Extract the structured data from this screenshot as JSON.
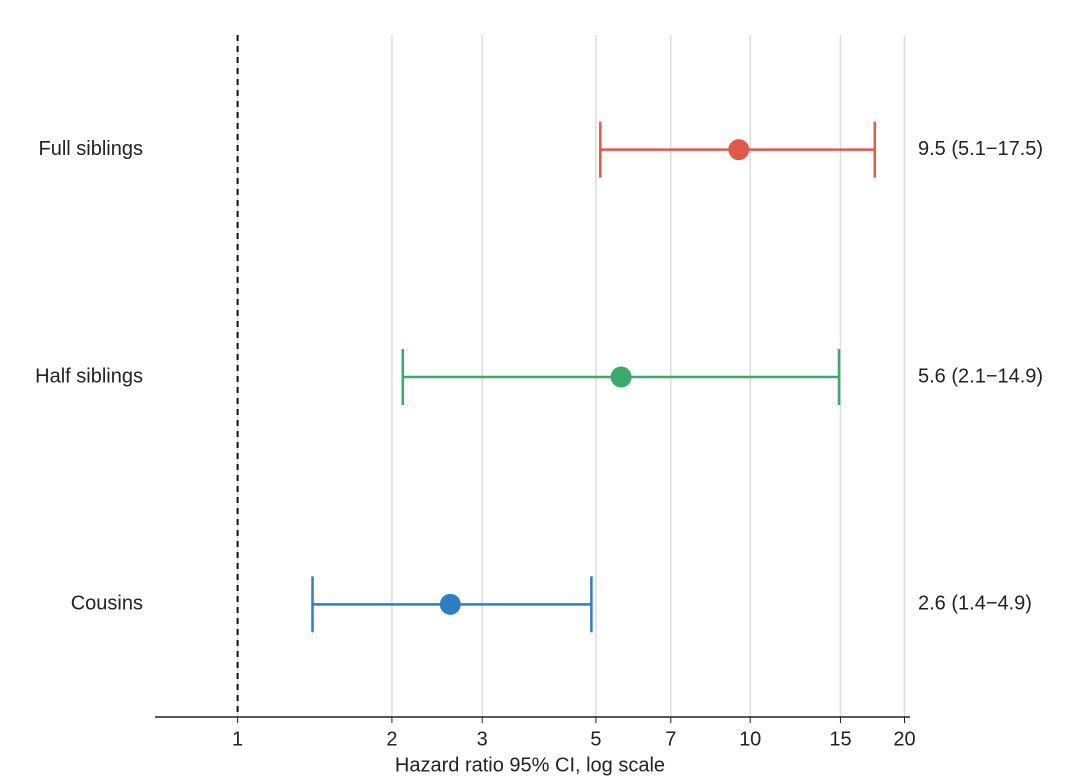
{
  "chart_data": {
    "type": "forest",
    "x_label": "Hazard ratio 95% CI, log scale",
    "categories": [
      "Full siblings",
      "Half siblings",
      "Cousins"
    ],
    "values": [
      9.5,
      5.6,
      2.6
    ],
    "lower": [
      5.1,
      2.1,
      1.4
    ],
    "upper": [
      17.5,
      14.9,
      4.9
    ],
    "value_labels": [
      "9.5 (5.1−17.5)",
      "5.6 (2.1−14.9)",
      "2.6 (1.4−4.9)"
    ],
    "colors": [
      "#e05a47",
      "#3aaa6a",
      "#2f7ec4"
    ],
    "xscale": "log",
    "xlim": [
      0.69,
      20.5
    ],
    "xticks": [
      1,
      2,
      3,
      5,
      7,
      10,
      15,
      20
    ],
    "reference": 1,
    "grid": true
  }
}
